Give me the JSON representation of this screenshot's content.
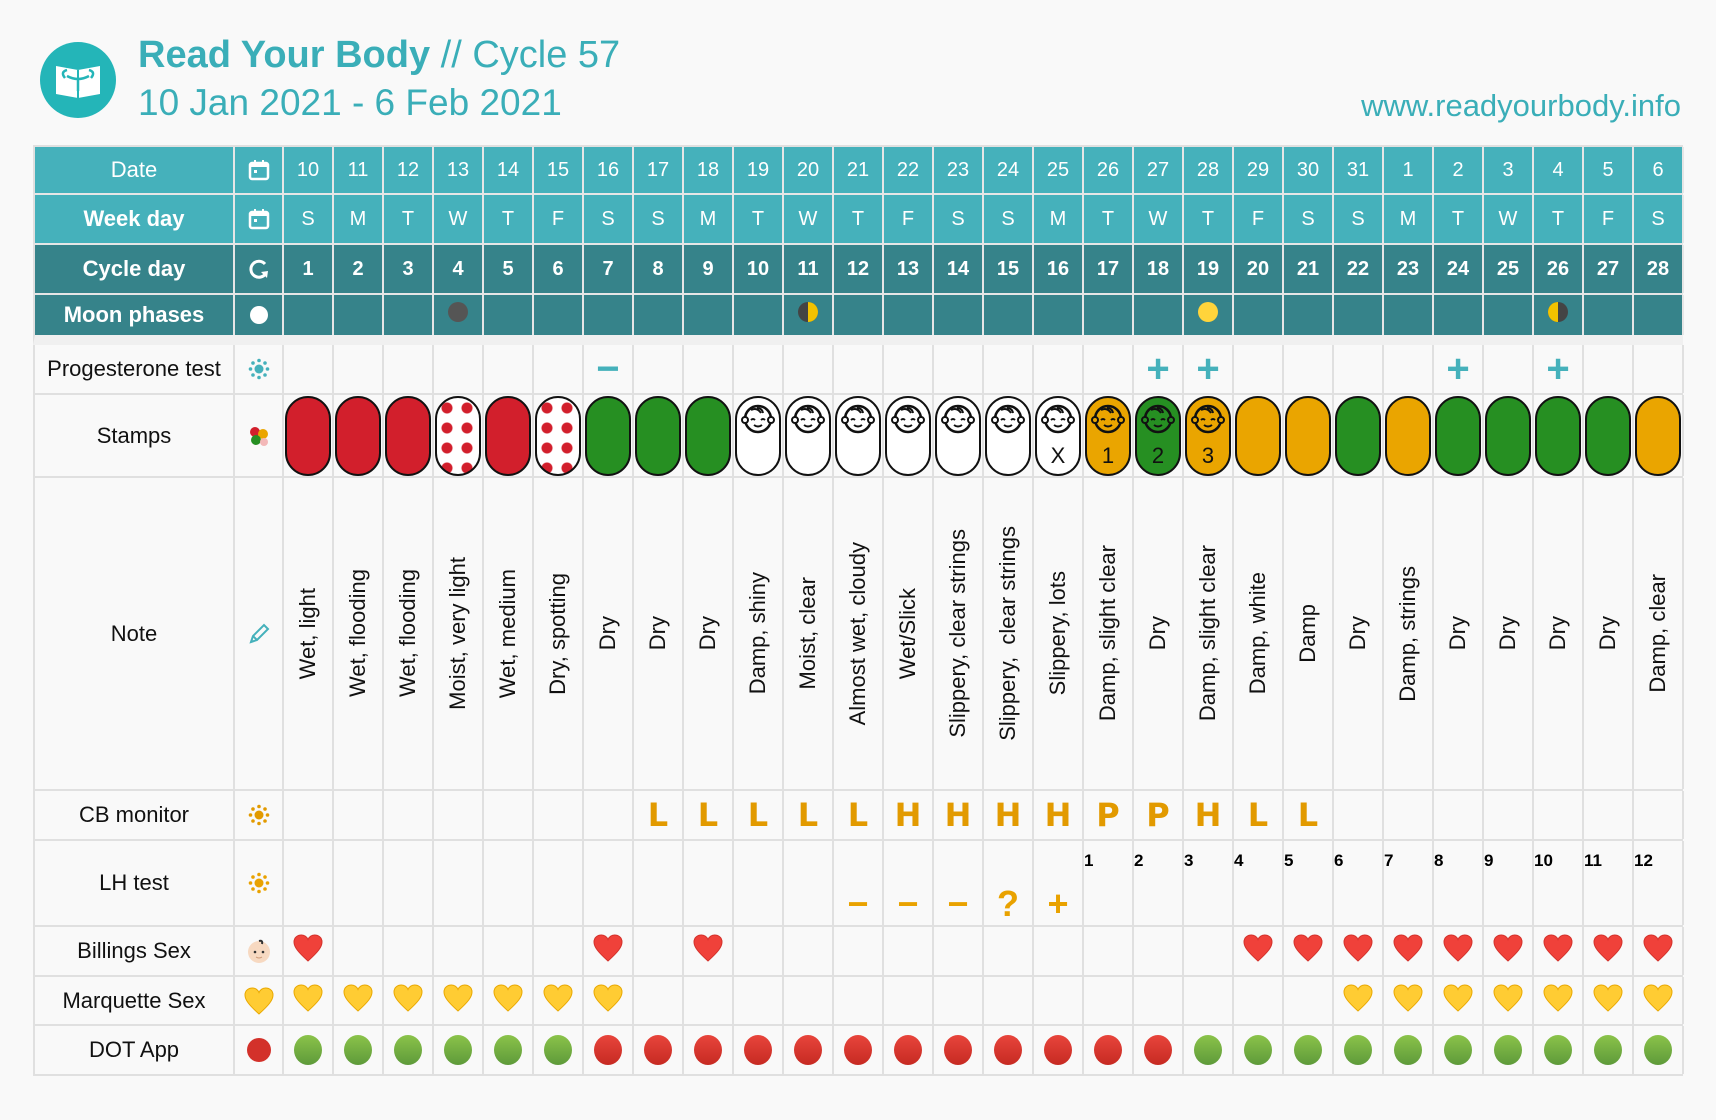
{
  "header": {
    "app_name": "Read Your Body",
    "cycle": "// Cycle 57",
    "date_range": "10 Jan 2021 - 6 Feb 2021",
    "website": "www.readyourbody.info"
  },
  "colors": {
    "teal_light": "#45b1bb",
    "teal_dark": "#36838a",
    "red": "#d21f2c",
    "green": "#268f22",
    "yellow": "#eaa500",
    "cb_orange": "#e29a00"
  },
  "rows": {
    "date": {
      "label": "Date",
      "icon": "calendar-icon",
      "values": [
        "10",
        "11",
        "12",
        "13",
        "14",
        "15",
        "16",
        "17",
        "18",
        "19",
        "20",
        "21",
        "22",
        "23",
        "24",
        "25",
        "26",
        "27",
        "28",
        "29",
        "30",
        "31",
        "1",
        "2",
        "3",
        "4",
        "5",
        "6"
      ]
    },
    "weekday": {
      "label": "Week day",
      "icon": "calendar-icon",
      "values": [
        "S",
        "M",
        "T",
        "W",
        "T",
        "F",
        "S",
        "S",
        "M",
        "T",
        "W",
        "T",
        "F",
        "S",
        "S",
        "M",
        "T",
        "W",
        "T",
        "F",
        "S",
        "S",
        "M",
        "T",
        "W",
        "T",
        "F",
        "S"
      ]
    },
    "cycle_day": {
      "label": "Cycle day",
      "icon": "refresh-icon",
      "values": [
        "1",
        "2",
        "3",
        "4",
        "5",
        "6",
        "7",
        "8",
        "9",
        "10",
        "11",
        "12",
        "13",
        "14",
        "15",
        "16",
        "17",
        "18",
        "19",
        "20",
        "21",
        "22",
        "23",
        "24",
        "25",
        "26",
        "27",
        "28"
      ]
    },
    "moon": {
      "label": "Moon phases",
      "icon": "full-moon-icon",
      "values": [
        "",
        "",
        "",
        "new",
        "",
        "",
        "",
        "",
        "",
        "",
        "first-quarter",
        "",
        "",
        "",
        "",
        "",
        "",
        "",
        "full",
        "",
        "",
        "",
        "",
        "",
        "",
        "last-quarter",
        "",
        ""
      ]
    },
    "progesterone": {
      "label": "Progesterone test",
      "icon": "sun-icon",
      "values": [
        "",
        "",
        "",
        "",
        "",
        "",
        "−",
        "",
        "",
        "",
        "",
        "",
        "",
        "",
        "",
        "",
        "",
        "+",
        "+",
        "",
        "",
        "",
        "",
        "+",
        "",
        "+",
        "",
        ""
      ]
    },
    "stamps": {
      "label": "Stamps",
      "icon": "stamps-icon",
      "values": [
        {
          "color": "red"
        },
        {
          "color": "red"
        },
        {
          "color": "red"
        },
        {
          "color": "red-dots"
        },
        {
          "color": "red"
        },
        {
          "color": "red-dots"
        },
        {
          "color": "green"
        },
        {
          "color": "green"
        },
        {
          "color": "green"
        },
        {
          "color": "white",
          "baby": true
        },
        {
          "color": "white",
          "baby": true
        },
        {
          "color": "white",
          "baby": true
        },
        {
          "color": "white",
          "baby": true
        },
        {
          "color": "white",
          "baby": true
        },
        {
          "color": "white",
          "baby": true
        },
        {
          "color": "white",
          "baby": true,
          "mark": "X"
        },
        {
          "color": "yellow",
          "baby": true,
          "mark": "1"
        },
        {
          "color": "green",
          "baby": true,
          "mark": "2"
        },
        {
          "color": "yellow",
          "baby": true,
          "mark": "3"
        },
        {
          "color": "yellow"
        },
        {
          "color": "yellow"
        },
        {
          "color": "green"
        },
        {
          "color": "yellow"
        },
        {
          "color": "green"
        },
        {
          "color": "green"
        },
        {
          "color": "green"
        },
        {
          "color": "green"
        },
        {
          "color": "yellow"
        }
      ]
    },
    "note": {
      "label": "Note",
      "icon": "pencil-icon",
      "values": [
        "Wet, light",
        "Wet, flooding",
        "Wet, flooding",
        "Moist, very light",
        "Wet, medium",
        "Dry, spotting",
        "Dry",
        "Dry",
        "Dry",
        "Damp, shiny",
        "Moist, clear",
        "Almost wet, cloudy",
        "Wet/Slick",
        "Slippery, clear strings",
        "Slippery,  clear strings",
        "Slippery, lots",
        "Damp, slight clear",
        "Dry",
        "Damp, slight clear",
        "Damp, white",
        "Damp",
        "Dry",
        "Damp, strings",
        "Dry",
        "Dry",
        "Dry",
        "Dry",
        "Damp, clear"
      ]
    },
    "cb_monitor": {
      "label": "CB monitor",
      "icon": "sun-icon",
      "values": [
        "",
        "",
        "",
        "",
        "",
        "",
        "",
        "L",
        "L",
        "L",
        "L",
        "L",
        "H",
        "H",
        "H",
        "H",
        "P",
        "P",
        "H",
        "L",
        "L",
        "",
        "",
        "",
        "",
        "",
        "",
        ""
      ]
    },
    "lh_test": {
      "label": "LH test",
      "icon": "sun-icon",
      "results": [
        "",
        "",
        "",
        "",
        "",
        "",
        "",
        "",
        "",
        "",
        "",
        "−",
        "−",
        "−",
        "?",
        "+",
        "",
        "",
        "",
        "",
        "",
        "",
        "",
        "",
        "",
        "",
        "",
        ""
      ],
      "counts": [
        "",
        "",
        "",
        "",
        "",
        "",
        "",
        "",
        "",
        "",
        "",
        "",
        "",
        "",
        "",
        "",
        "1",
        "2",
        "3",
        "4",
        "5",
        "6",
        "7",
        "8",
        "9",
        "10",
        "11",
        "12"
      ]
    },
    "billings_sex": {
      "label": "Billings Sex",
      "icon": "baby-icon",
      "values": [
        true,
        false,
        false,
        false,
        false,
        false,
        true,
        false,
        true,
        false,
        false,
        false,
        false,
        false,
        false,
        false,
        false,
        false,
        false,
        true,
        true,
        true,
        true,
        true,
        true,
        true,
        true,
        true
      ]
    },
    "marquette_sex": {
      "label": "Marquette Sex",
      "icon": "yellow-heart-icon",
      "values": [
        true,
        true,
        true,
        true,
        true,
        true,
        true,
        false,
        false,
        false,
        false,
        false,
        false,
        false,
        false,
        false,
        false,
        false,
        false,
        false,
        false,
        true,
        true,
        true,
        true,
        true,
        true,
        true
      ]
    },
    "dot_app": {
      "label": "DOT App",
      "icon": "red-circle-icon",
      "values": [
        "green",
        "green",
        "green",
        "green",
        "green",
        "green",
        "red",
        "red",
        "red",
        "red",
        "red",
        "red",
        "red",
        "red",
        "red",
        "red",
        "red",
        "red",
        "green",
        "green",
        "green",
        "green",
        "green",
        "green",
        "green",
        "green",
        "green",
        "green"
      ]
    }
  }
}
